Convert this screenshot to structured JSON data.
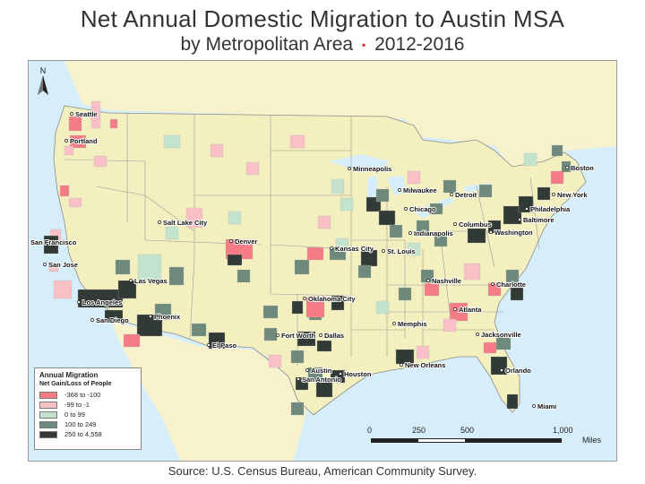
{
  "title": "Net Annual Domestic Migration to Austin MSA",
  "subtitle": {
    "main": "by Metropolitan Area",
    "separator": "▪",
    "years": "2012-2016"
  },
  "source": "Source:  U.S. Census Bureau, American Community Survey.",
  "north_label": "N",
  "colors": {
    "ocean": "#d6eefa",
    "land": "#f4efbf",
    "neighbor_land": "#f7f2cc",
    "state_border": "#9c9c9c",
    "loss_large": "#f47c86",
    "loss_small": "#f9c0c6",
    "gain_small": "#c3e3cc",
    "gain_mid": "#6e8a7c",
    "gain_large": "#323a36"
  },
  "legend": {
    "title": "Annual Migration",
    "subtitle": "Net Gain/Loss of People",
    "items": [
      {
        "label": "-368 to -100",
        "color": "#f47c86"
      },
      {
        "label": "-99 to -1",
        "color": "#f9c0c6"
      },
      {
        "label": "0 to 99",
        "color": "#c3e3cc"
      },
      {
        "label": "100 to 249",
        "color": "#6e8a7c"
      },
      {
        "label": "250 to 4,558",
        "color": "#323a36"
      }
    ]
  },
  "scale_bar": {
    "ticks": [
      "0",
      "250",
      "500",
      "1,000"
    ],
    "unit": "Miles"
  },
  "cities": [
    {
      "name": "Seattle",
      "class": "loss_large"
    },
    {
      "name": "Portland",
      "class": "loss_large"
    },
    {
      "name": "San Francisco",
      "class": "gain_large"
    },
    {
      "name": "San Jose",
      "class": "gain_large"
    },
    {
      "name": "Los Angeles",
      "class": "gain_large"
    },
    {
      "name": "San Diego",
      "class": "gain_large"
    },
    {
      "name": "Las Vegas",
      "class": "gain_large"
    },
    {
      "name": "Phoenix",
      "class": "gain_large"
    },
    {
      "name": "Salt Lake City",
      "class": "loss_small"
    },
    {
      "name": "Denver",
      "class": "loss_large"
    },
    {
      "name": "El Paso",
      "class": "gain_large"
    },
    {
      "name": "Oklahoma City",
      "class": "loss_large"
    },
    {
      "name": "Fort Worth",
      "class": "gain_large"
    },
    {
      "name": "Dallas",
      "class": "gain_large"
    },
    {
      "name": "Austin",
      "class": "land"
    },
    {
      "name": "San Antonio",
      "class": "gain_large"
    },
    {
      "name": "Houston",
      "class": "gain_large"
    },
    {
      "name": "Kansas City",
      "class": "loss_large"
    },
    {
      "name": "St. Louis",
      "class": "gain_large"
    },
    {
      "name": "Minneapolis",
      "class": "gain_small"
    },
    {
      "name": "Milwaukee",
      "class": "gain_large"
    },
    {
      "name": "Chicago",
      "class": "gain_large"
    },
    {
      "name": "Detroit",
      "class": "gain_mid"
    },
    {
      "name": "Indianapolis",
      "class": "gain_mid"
    },
    {
      "name": "Columbus",
      "class": "gain_mid"
    },
    {
      "name": "Memphis",
      "class": "gain_mid"
    },
    {
      "name": "Nashville",
      "class": "loss_large"
    },
    {
      "name": "Atlanta",
      "class": "loss_large"
    },
    {
      "name": "New Orleans",
      "class": "gain_large"
    },
    {
      "name": "Jacksonville",
      "class": "gain_mid"
    },
    {
      "name": "Orlando",
      "class": "gain_large"
    },
    {
      "name": "Miami",
      "class": "gain_large"
    },
    {
      "name": "Charlotte",
      "class": "loss_large"
    },
    {
      "name": "Washington",
      "class": "gain_large"
    },
    {
      "name": "Baltimore",
      "class": "gain_large"
    },
    {
      "name": "Philadelphia",
      "class": "gain_large"
    },
    {
      "name": "New York",
      "class": "gain_large"
    },
    {
      "name": "Boston",
      "class": "loss_large"
    }
  ]
}
